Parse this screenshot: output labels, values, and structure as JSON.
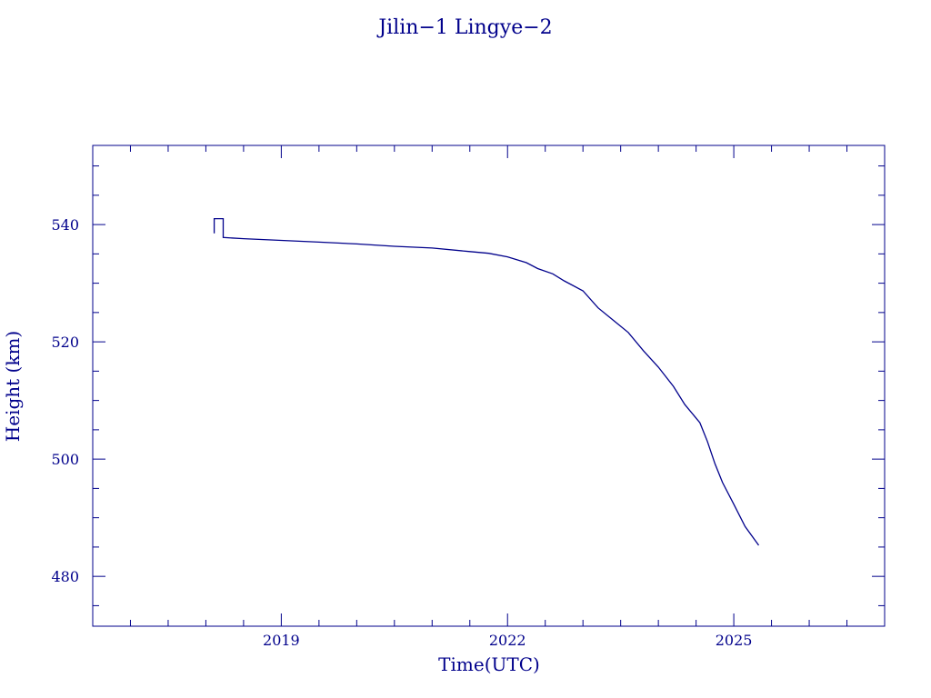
{
  "colors": {
    "foreground": "#00008b",
    "background": "#ffffff"
  },
  "chart_data": {
    "type": "line",
    "title": "Jilin−1 Lingye−2",
    "xlabel": "Time(UTC)",
    "ylabel": "Height (km)",
    "xlim": [
      2016.5,
      2027.0
    ],
    "ylim": [
      471.5,
      553.5
    ],
    "x_ticks": [
      2019,
      2022,
      2025
    ],
    "x_tick_labels": [
      "2019",
      "2022",
      "2025"
    ],
    "y_ticks": [
      480,
      500,
      520,
      540
    ],
    "y_tick_labels": [
      "480",
      "500",
      "520",
      "540"
    ],
    "x_minor_step": 0.5,
    "y_minor_step": 5,
    "grid": false,
    "series": [
      {
        "values_xy": [
          [
            2018.11,
            538.5
          ],
          [
            2018.11,
            541.0
          ],
          [
            2018.23,
            541.0
          ],
          [
            2018.23,
            537.8
          ],
          [
            2018.5,
            537.6
          ],
          [
            2019.0,
            537.3
          ],
          [
            2019.5,
            537.0
          ],
          [
            2020.0,
            536.7
          ],
          [
            2020.5,
            536.3
          ],
          [
            2021.0,
            536.0
          ],
          [
            2021.5,
            535.4
          ],
          [
            2021.75,
            535.1
          ],
          [
            2022.0,
            534.5
          ],
          [
            2022.25,
            533.5
          ],
          [
            2022.4,
            532.5
          ],
          [
            2022.6,
            531.6
          ],
          [
            2022.75,
            530.4
          ],
          [
            2023.0,
            528.7
          ],
          [
            2023.2,
            525.8
          ],
          [
            2023.4,
            523.7
          ],
          [
            2023.6,
            521.6
          ],
          [
            2023.8,
            518.5
          ],
          [
            2024.0,
            515.7
          ],
          [
            2024.2,
            512.4
          ],
          [
            2024.35,
            509.3
          ],
          [
            2024.55,
            506.2
          ],
          [
            2024.65,
            503.0
          ],
          [
            2024.75,
            499.2
          ],
          [
            2024.85,
            496.0
          ],
          [
            2025.0,
            492.3
          ],
          [
            2025.15,
            488.5
          ],
          [
            2025.33,
            485.3
          ]
        ]
      }
    ]
  }
}
